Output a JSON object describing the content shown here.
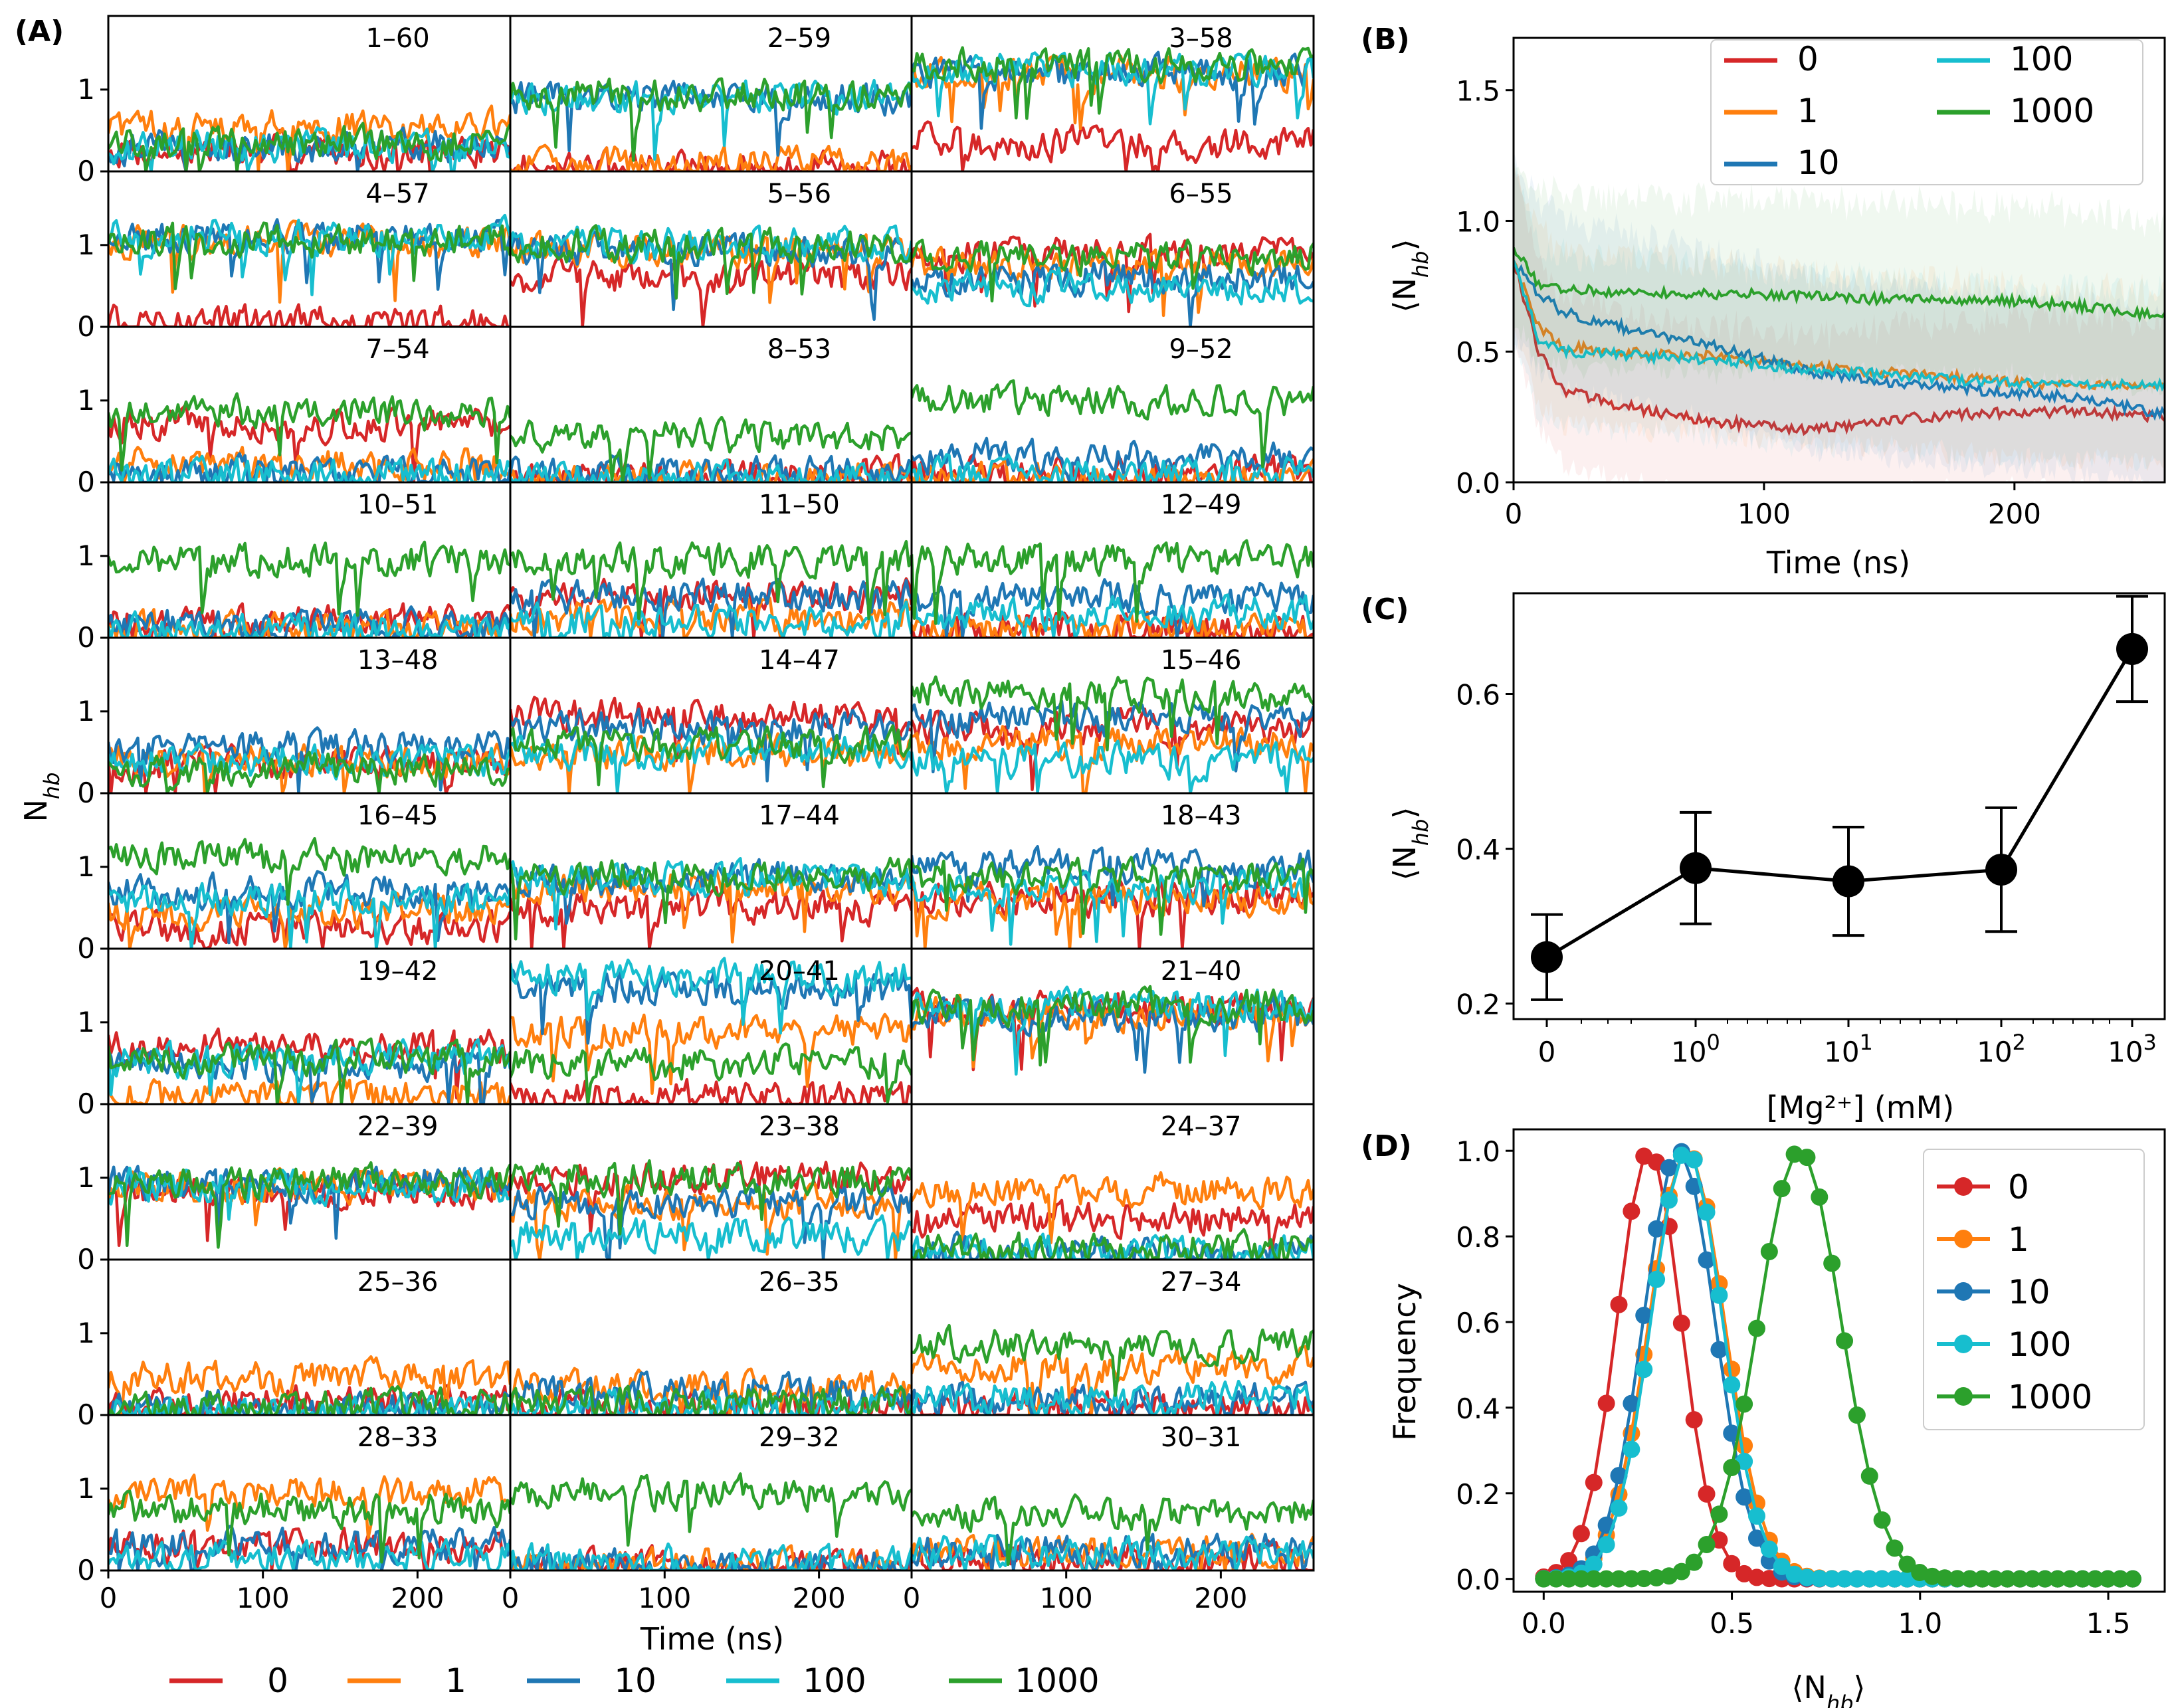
{
  "figure": {
    "panel_labels": [
      "(A)",
      "(B)",
      "(C)",
      "(D)"
    ]
  },
  "legend": {
    "entries": [
      {
        "label": "0",
        "color": "#d62728"
      },
      {
        "label": "1",
        "color": "#ff7f0e"
      },
      {
        "label": "10",
        "color": "#1f77b4"
      },
      {
        "label": "100",
        "color": "#17becf"
      },
      {
        "label": "1000",
        "color": "#2ca02c"
      }
    ]
  },
  "chart_data": [
    {
      "panel": "A",
      "type": "line",
      "title": "",
      "ylabel": "N_hb",
      "xlabel": "Time (ns)",
      "xlim": [
        0,
        260
      ],
      "ylim": [
        0,
        1.9
      ],
      "xticks": [
        "0",
        "100",
        "200"
      ],
      "yticks": [
        "0",
        "1"
      ],
      "series_names": [
        "0",
        "1",
        "10",
        "100",
        "1000"
      ],
      "subplots": [
        {
          "pair": "1–60",
          "levels": {
            "0": 0.25,
            "1": 0.55,
            "10": 0.3,
            "100": 0.3,
            "1000": 0.35
          }
        },
        {
          "pair": "2–59",
          "levels": {
            "0": 0.05,
            "1": 0.1,
            "10": 0.9,
            "100": 0.9,
            "1000": 0.95
          }
        },
        {
          "pair": "3–58",
          "levels": {
            "0": 0.35,
            "1": 1.2,
            "10": 1.2,
            "100": 1.25,
            "1000": 1.3
          }
        },
        {
          "pair": "4–57",
          "levels": {
            "0": 0.05,
            "1": 1.05,
            "10": 1.1,
            "100": 1.1,
            "1000": 1.05
          }
        },
        {
          "pair": "5–56",
          "levels": {
            "0": 0.6,
            "1": 0.95,
            "10": 0.95,
            "100": 1.0,
            "1000": 1.0
          }
        },
        {
          "pair": "6–55",
          "levels": {
            "0": 0.9,
            "1": 0.75,
            "10": 0.6,
            "100": 0.5,
            "1000": 0.85
          }
        },
        {
          "pair": "7–54",
          "levels": {
            "0": 0.7,
            "1": 0.2,
            "10": 0.1,
            "100": 0.1,
            "1000": 0.85
          }
        },
        {
          "pair": "8–53",
          "levels": {
            "0": 0.1,
            "1": 0.05,
            "10": 0.1,
            "100": 0.05,
            "1000": 0.55
          }
        },
        {
          "pair": "9–52",
          "levels": {
            "0": 0.1,
            "1": 0.05,
            "10": 0.3,
            "100": 0.1,
            "1000": 1.0
          }
        },
        {
          "pair": "10–51",
          "levels": {
            "0": 0.2,
            "1": 0.1,
            "10": 0.15,
            "100": 0.1,
            "1000": 0.95
          }
        },
        {
          "pair": "11–50",
          "levels": {
            "0": 0.5,
            "1": 0.25,
            "10": 0.5,
            "100": 0.2,
            "1000": 0.95
          }
        },
        {
          "pair": "12–49",
          "levels": {
            "0": 0.1,
            "1": 0.1,
            "10": 0.5,
            "100": 0.3,
            "1000": 0.95
          }
        },
        {
          "pair": "13–48",
          "levels": {
            "0": 0.35,
            "1": 0.4,
            "10": 0.55,
            "100": 0.4,
            "1000": 0.3
          }
        },
        {
          "pair": "14–47",
          "levels": {
            "0": 0.95,
            "1": 0.5,
            "10": 0.8,
            "100": 0.5,
            "1000": 0.6
          }
        },
        {
          "pair": "15–46",
          "levels": {
            "0": 0.8,
            "1": 0.6,
            "10": 0.9,
            "100": 0.4,
            "1000": 1.2
          }
        },
        {
          "pair": "16–45",
          "levels": {
            "0": 0.25,
            "1": 0.45,
            "10": 0.7,
            "100": 0.6,
            "1000": 1.1
          }
        },
        {
          "pair": "17–44",
          "levels": {
            "0": 0.5,
            "1": 0.75,
            "10": 0.85,
            "100": 0.85,
            "1000": 0.9
          }
        },
        {
          "pair": "18–43",
          "levels": {
            "0": 0.6,
            "1": 0.6,
            "10": 1.0,
            "100": 0.75,
            "1000": 0.9
          }
        },
        {
          "pair": "19–42",
          "levels": {
            "0": 0.7,
            "1": 0.1,
            "10": 0.5,
            "100": 0.55,
            "1000": 0.55
          }
        },
        {
          "pair": "20–41",
          "levels": {
            "0": 0.1,
            "1": 0.9,
            "10": 1.4,
            "100": 1.55,
            "1000": 0.5
          }
        },
        {
          "pair": "21–40",
          "levels": {
            "0": 1.15,
            "1": 1.1,
            "10": 1.1,
            "100": 1.2,
            "1000": 1.2
          }
        },
        {
          "pair": "22–39",
          "levels": {
            "0": 0.85,
            "1": 0.9,
            "10": 0.95,
            "100": 0.9,
            "1000": 0.95
          }
        },
        {
          "pair": "23–38",
          "levels": {
            "0": 1.0,
            "1": 0.7,
            "10": 0.7,
            "100": 0.3,
            "1000": 1.0
          }
        },
        {
          "pair": "24–37",
          "levels": {
            "0": 0.5,
            "1": 0.85,
            "10": 0.1,
            "100": 0.1,
            "1000": 0.15
          }
        },
        {
          "pair": "25–36",
          "levels": {
            "0": 0.15,
            "1": 0.45,
            "10": 0.1,
            "100": 0.05,
            "1000": 0.1
          }
        },
        {
          "pair": "26–35",
          "levels": {
            "0": 0.1,
            "1": 0.35,
            "10": 0.3,
            "100": 0.1,
            "1000": 0.15
          }
        },
        {
          "pair": "27–34",
          "levels": {
            "0": 0.1,
            "1": 0.6,
            "10": 0.2,
            "100": 0.2,
            "1000": 0.85
          }
        },
        {
          "pair": "28–33",
          "levels": {
            "0": 0.3,
            "1": 0.95,
            "10": 0.3,
            "100": 0.15,
            "1000": 0.75
          }
        },
        {
          "pair": "29–32",
          "levels": {
            "0": 0.05,
            "1": 0.05,
            "10": 0.05,
            "100": 0.1,
            "1000": 0.95
          }
        },
        {
          "pair": "30–31",
          "levels": {
            "0": 0.15,
            "1": 0.2,
            "10": 0.25,
            "100": 0.2,
            "1000": 0.7
          }
        }
      ]
    },
    {
      "panel": "B",
      "type": "line",
      "title": "",
      "xlabel": "Time (ns)",
      "ylabel": "⟨N_hb⟩",
      "xlim": [
        0,
        260
      ],
      "ylim": [
        0.0,
        1.7
      ],
      "xticks": [
        0,
        100,
        200
      ],
      "yticks": [
        0.0,
        0.5,
        1.0,
        1.5
      ],
      "x": [
        0,
        10,
        20,
        40,
        60,
        80,
        100,
        120,
        150,
        180,
        200,
        220,
        240,
        260
      ],
      "series": [
        {
          "name": "0",
          "values": [
            0.85,
            0.5,
            0.35,
            0.3,
            0.26,
            0.23,
            0.22,
            0.2,
            0.24,
            0.26,
            0.27,
            0.27,
            0.26,
            0.25
          ]
        },
        {
          "name": "1",
          "values": [
            0.85,
            0.6,
            0.52,
            0.5,
            0.49,
            0.48,
            0.46,
            0.44,
            0.42,
            0.4,
            0.38,
            0.38,
            0.37,
            0.37
          ]
        },
        {
          "name": "10",
          "values": [
            0.85,
            0.72,
            0.65,
            0.6,
            0.56,
            0.52,
            0.47,
            0.42,
            0.38,
            0.36,
            0.34,
            0.33,
            0.3,
            0.26
          ]
        },
        {
          "name": "100",
          "values": [
            0.85,
            0.55,
            0.5,
            0.49,
            0.48,
            0.47,
            0.45,
            0.43,
            0.41,
            0.39,
            0.38,
            0.37,
            0.37,
            0.37
          ]
        },
        {
          "name": "1000",
          "values": [
            0.9,
            0.76,
            0.74,
            0.73,
            0.72,
            0.72,
            0.72,
            0.71,
            0.7,
            0.7,
            0.69,
            0.68,
            0.66,
            0.63
          ]
        }
      ]
    },
    {
      "panel": "C",
      "type": "line",
      "title": "",
      "xlabel": "[Mg²⁺] (mM)",
      "ylabel": "⟨N_hb⟩",
      "xscale": "symlog",
      "xticks": [
        "0",
        "10⁰",
        "10¹",
        "10²",
        "10³"
      ],
      "ylim": [
        0.18,
        0.73
      ],
      "yticks": [
        0.2,
        0.4,
        0.6
      ],
      "categories": [
        "0",
        "1",
        "10",
        "100",
        "1000"
      ],
      "values": [
        0.26,
        0.375,
        0.358,
        0.373,
        0.658
      ],
      "errors": [
        0.055,
        0.072,
        0.07,
        0.08,
        0.068
      ]
    },
    {
      "panel": "D",
      "type": "line",
      "title": "",
      "xlabel": "⟨N_hb⟩",
      "ylabel": "Frequency",
      "xlim": [
        -0.08,
        1.65
      ],
      "ylim": [
        -0.03,
        1.05
      ],
      "xticks": [
        0.0,
        0.5,
        1.0,
        1.5
      ],
      "yticks": [
        0.0,
        0.2,
        0.4,
        0.6,
        0.8,
        1.0
      ],
      "x_start": 0.0,
      "x_step": 0.0333,
      "n_points": 48,
      "legend_position": "upper-right",
      "series": [
        {
          "name": "0",
          "peak": 0.28,
          "width": 0.085
        },
        {
          "name": "1",
          "peak": 0.38,
          "width": 0.1
        },
        {
          "name": "10",
          "peak": 0.36,
          "width": 0.095
        },
        {
          "name": "100",
          "peak": 0.38,
          "width": 0.095
        },
        {
          "name": "1000",
          "peak": 0.68,
          "width": 0.11
        }
      ]
    }
  ]
}
